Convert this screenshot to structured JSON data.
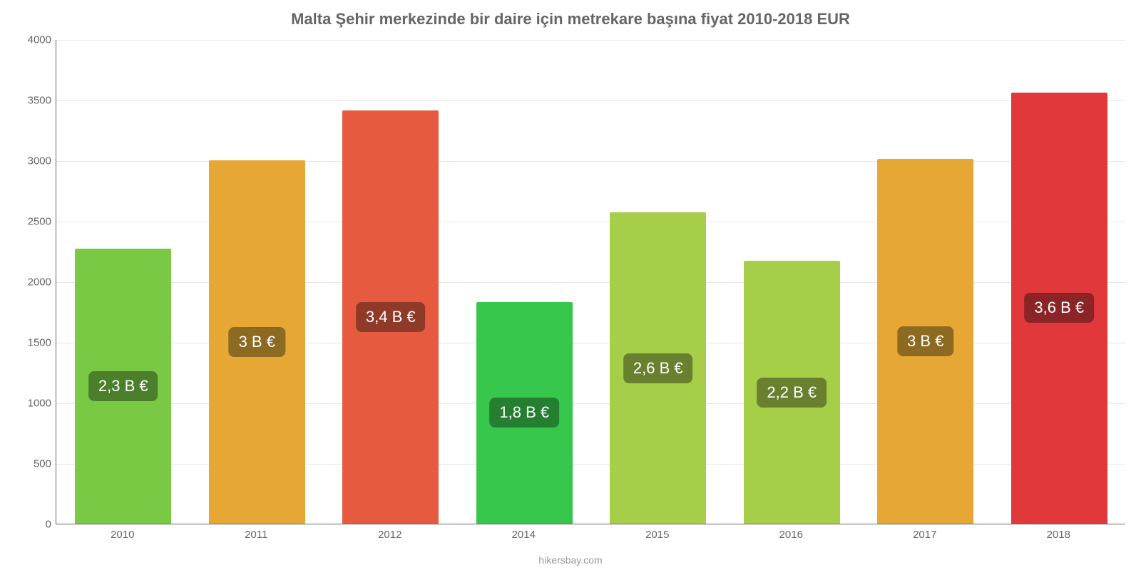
{
  "chart": {
    "type": "bar",
    "title": "Malta Şehir merkezinde bir daire için metrekare başına fiyat 2010-2018 EUR",
    "title_fontsize": 22,
    "title_color": "#666666",
    "background_color": "#ffffff",
    "axis_color": "#666666",
    "grid_color": "#e6e6e6",
    "tick_label_color": "#666666",
    "tick_fontsize": 15,
    "badge_fontsize": 22,
    "badge_text_color": "#ffffff",
    "credit": "hikersbay.com",
    "credit_fontsize": 14,
    "credit_color": "#999999",
    "ylim": [
      0,
      4000
    ],
    "ytick_step": 500,
    "yticks": [
      0,
      500,
      1000,
      1500,
      2000,
      2500,
      3000,
      3500,
      4000
    ],
    "bar_width_ratio": 0.72,
    "bars": [
      {
        "category": "2010",
        "value": 2270,
        "label": "2,3 B €",
        "fill_color": "#79c944",
        "badge_color": "#4b7f2b"
      },
      {
        "category": "2011",
        "value": 3000,
        "label": "3 B €",
        "fill_color": "#e7a734",
        "badge_color": "#8d6a22"
      },
      {
        "category": "2012",
        "value": 3410,
        "label": "3,4 B €",
        "fill_color": "#e65a3f",
        "badge_color": "#8f3a29"
      },
      {
        "category": "2014",
        "value": 1830,
        "label": "1,8 B €",
        "fill_color": "#37c74c",
        "badge_color": "#247f31"
      },
      {
        "category": "2015",
        "value": 2570,
        "label": "2,6 B €",
        "fill_color": "#a6ce49",
        "badge_color": "#69812f"
      },
      {
        "category": "2016",
        "value": 2170,
        "label": "2,2 B €",
        "fill_color": "#a6ce49",
        "badge_color": "#69812f"
      },
      {
        "category": "2017",
        "value": 3010,
        "label": "3 B €",
        "fill_color": "#e7a734",
        "badge_color": "#8d6a22"
      },
      {
        "category": "2018",
        "value": 3560,
        "label": "3,6 B €",
        "fill_color": "#e0383b",
        "badge_color": "#8b2427"
      }
    ]
  }
}
